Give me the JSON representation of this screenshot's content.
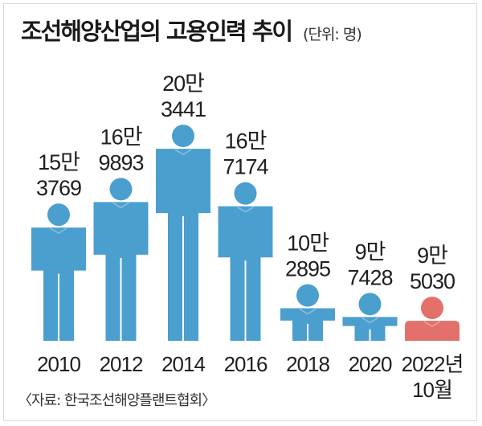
{
  "title": "조선해양산업의 고용인력 추이",
  "unit": "(단위: 명)",
  "source": "〈자료: 한국조선해양플랜트협회〉",
  "chart_data": {
    "type": "bar",
    "title": "조선해양산업의 고용인력 추이",
    "unit": "(단위: 명)",
    "categories": [
      "2010",
      "2012",
      "2014",
      "2016",
      "2018",
      "2020",
      "2022년"
    ],
    "category_sublabels": [
      "",
      "",
      "",
      "",
      "",
      "",
      "10월"
    ],
    "values": [
      153769,
      169893,
      203441,
      167174,
      102895,
      97428,
      95030
    ],
    "value_labels": [
      [
        "15만",
        "3769"
      ],
      [
        "16만",
        "9893"
      ],
      [
        "20만",
        "3441"
      ],
      [
        "16만",
        "7174"
      ],
      [
        "10만",
        "2895"
      ],
      [
        "9만",
        "7428"
      ],
      [
        "9만",
        "5030"
      ]
    ],
    "colors": [
      "#4b9fce",
      "#4b9fce",
      "#4b9fce",
      "#4b9fce",
      "#4b9fce",
      "#4b9fce",
      "#e4706c"
    ],
    "ylim": [
      90000,
      204000
    ],
    "grid": false,
    "legend": "none"
  }
}
